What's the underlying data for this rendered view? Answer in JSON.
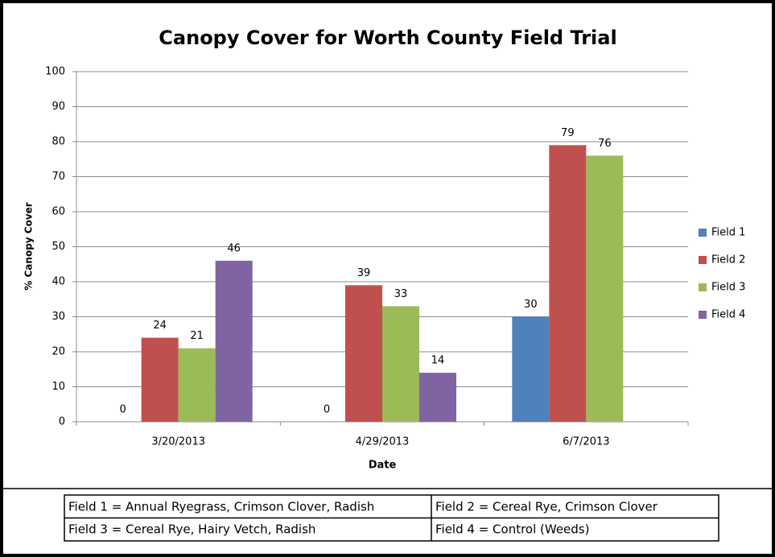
{
  "chart_data": {
    "type": "bar",
    "title": "Canopy Cover for Worth County Field Trial",
    "y_label": "% Canopy Cover",
    "x_label": "Date",
    "categories": [
      "3/20/2013",
      "4/29/2013",
      "6/7/2013"
    ],
    "series": [
      {
        "name": "Field 1",
        "color": "#4f81bd",
        "values": [
          0,
          0,
          30
        ]
      },
      {
        "name": "Field 2",
        "color": "#c0504d",
        "values": [
          24,
          39,
          79
        ]
      },
      {
        "name": "Field 3",
        "color": "#9bbb59",
        "values": [
          21,
          33,
          76
        ]
      },
      {
        "name": "Field 4",
        "color": "#8064a2",
        "values": [
          46,
          14,
          null
        ]
      }
    ],
    "ylim": [
      0,
      100
    ],
    "yticks": [
      0,
      10,
      20,
      30,
      40,
      50,
      60,
      70,
      80,
      90,
      100
    ],
    "grid": true,
    "legend": "right"
  },
  "table": {
    "rows": [
      [
        "Field 1 = Annual Ryegrass, Crimson Clover, Radish",
        "Field 2 = Cereal Rye, Crimson Clover"
      ],
      [
        "Field 3 = Cereal Rye, Hairy Vetch, Radish",
        "Field 4 = Control (Weeds)"
      ]
    ]
  }
}
